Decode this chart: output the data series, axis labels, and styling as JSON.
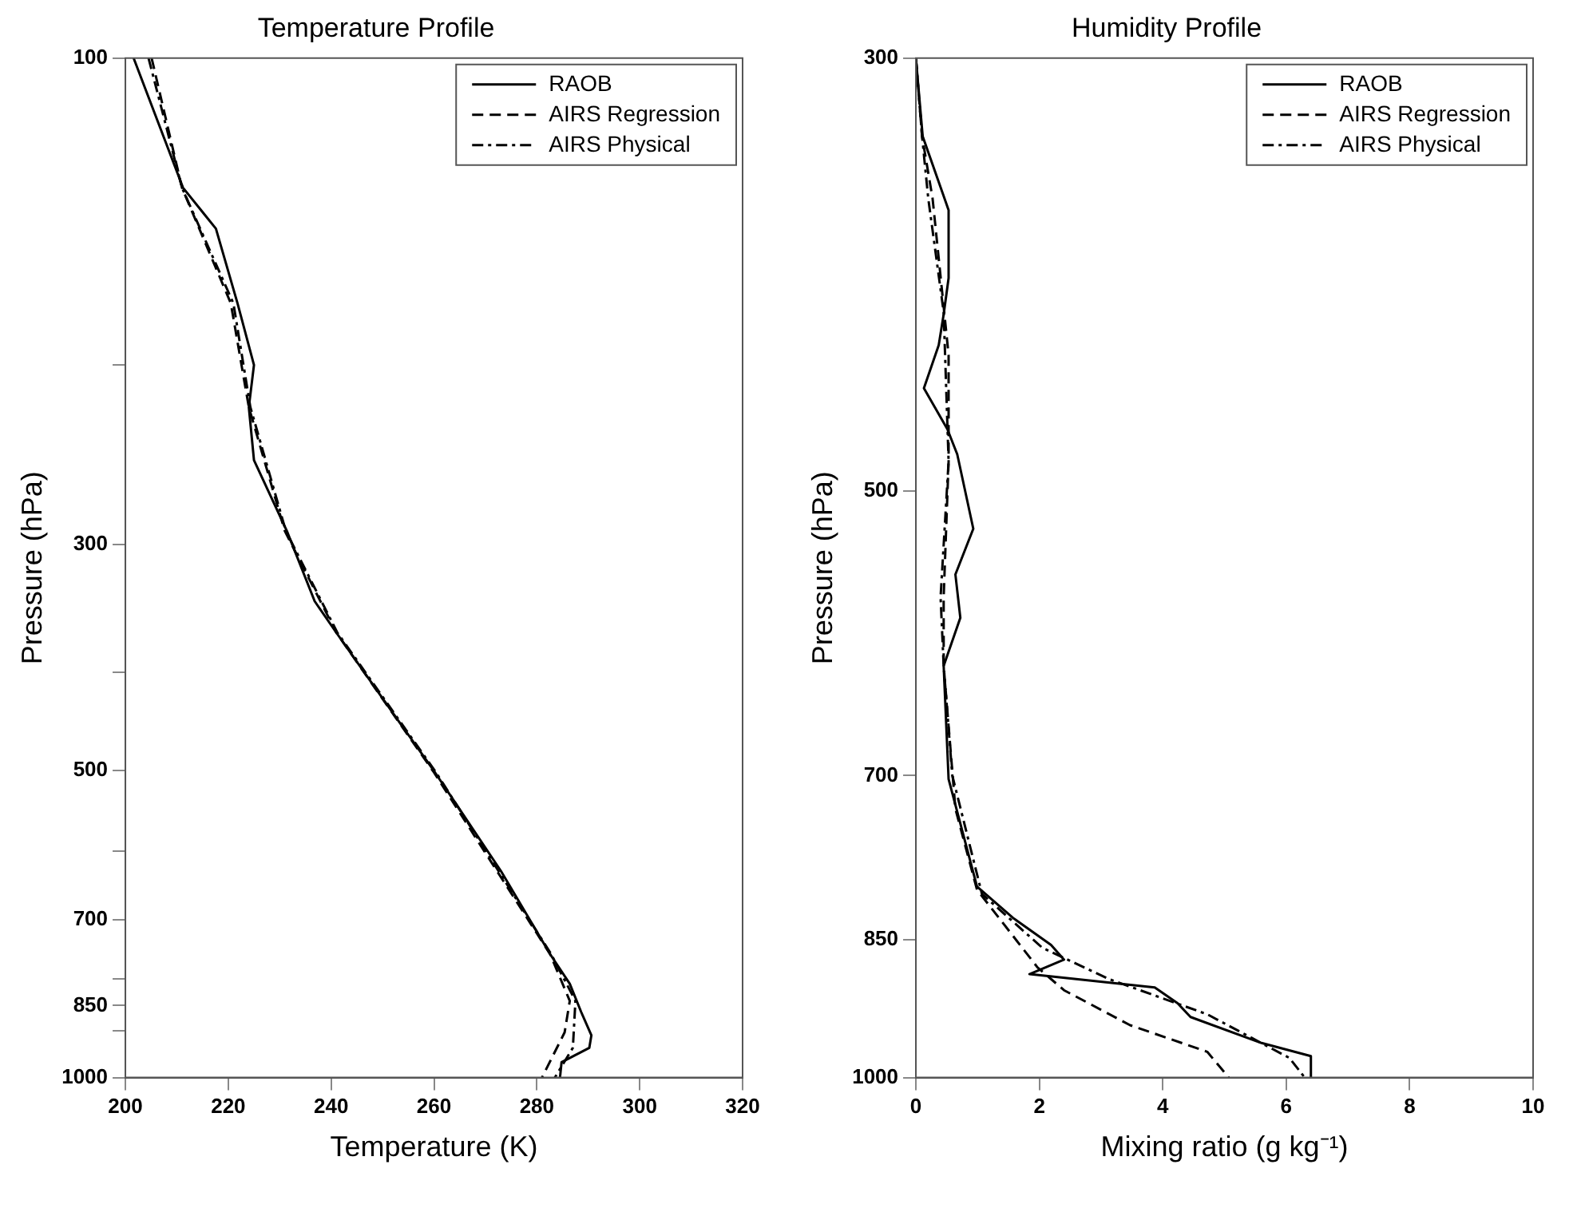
{
  "chart_data": [
    {
      "type": "line",
      "title": "Temperature Profile",
      "xlabel": "Temperature (K)",
      "ylabel": "Pressure (hPa)",
      "log": "y",
      "xlim": [
        200,
        320
      ],
      "xticks": [
        200,
        220,
        240,
        260,
        280,
        300,
        320
      ],
      "ylim": [
        1000,
        100
      ],
      "yticks": [
        100,
        {
          "value": 200,
          "label": null
        },
        300,
        {
          "value": 400,
          "label": null
        },
        500,
        {
          "value": 600,
          "label": null
        },
        700,
        {
          "value": 800,
          "label": null
        },
        850,
        {
          "value": 900,
          "label": null
        },
        1000
      ],
      "legend": "top right",
      "series": [
        {
          "name": "RAOB",
          "color": "#000000",
          "line_style": "solid",
          "x": [
            201.6,
            211.2,
            217.6,
            221.8,
            225.0,
            224.0,
            225.0,
            231.4,
            236.8,
            241.0,
            253.8,
            260.2,
            273.0,
            282.6,
            286.4,
            288.6,
            290.6,
            290.2,
            284.8,
            284.5
          ],
          "values": [
            100,
            134,
            147,
            174,
            200,
            220,
            248,
            291,
            341,
            366,
            452,
            502,
            627,
            757,
            809,
            862,
            909,
            935,
            966,
            1000
          ]
        },
        {
          "name": "AIRS Regression",
          "color": "#000000",
          "line_style": "dashed",
          "x": [
            205.1,
            211,
            220.5,
            224,
            231,
            241,
            260,
            282.6,
            286.4,
            285.4,
            281
          ],
          "values": [
            100,
            134,
            174,
            220,
            291,
            366,
            502,
            757,
            841,
            903,
            1000
          ]
        },
        {
          "name": "AIRS Physical",
          "color": "#000000",
          "line_style": "dashdot",
          "x": [
            204.5,
            211,
            221,
            224.3,
            231.2,
            241.2,
            260.4,
            282.8,
            287.5,
            287,
            283.5
          ],
          "values": [
            100,
            134,
            174,
            220,
            291,
            366,
            502,
            757,
            841,
            935,
            1000
          ]
        }
      ]
    },
    {
      "type": "line",
      "title": "Humidity Profile",
      "xlabel": "Mixing ratio (g kg⁻¹)",
      "ylabel": "Pressure (hPa)",
      "log": "y",
      "xlim": [
        0,
        10
      ],
      "xticks": [
        0,
        2,
        4,
        6,
        8,
        10
      ],
      "ylim": [
        1000,
        300
      ],
      "yticks": [
        300,
        500,
        700,
        850,
        1000
      ],
      "legend": "top right",
      "series": [
        {
          "name": "RAOB",
          "color": "#000000",
          "line_style": "solid",
          "x": [
            0,
            0.11,
            0.53,
            0.53,
            0.45,
            0.37,
            0.13,
            0.51,
            0.67,
            0.93,
            0.64,
            0.72,
            0.45,
            0.53,
            0.99,
            1.57,
            2.19,
            2.4,
            1.84,
            3.87,
            4.24,
            4.45,
            5.6,
            6.4,
            6.4
          ],
          "values": [
            300,
            329,
            359,
            389,
            406,
            421,
            443,
            465,
            479,
            523,
            552,
            581,
            615,
            703,
            798,
            828,
            855,
            870,
            885,
            899,
            916,
            931,
            960,
            975,
            1000
          ]
        },
        {
          "name": "AIRS Regression",
          "color": "#000000",
          "line_style": "dashed",
          "x": [
            0,
            0.1,
            0.27,
            0.53,
            0.53,
            0.45,
            0.45,
            0.64,
            0.99,
            1.97,
            2.4,
            3.47,
            4.72,
            5.07
          ],
          "values": [
            300,
            329,
            354,
            426,
            483,
            567,
            615,
            728,
            801,
            878,
            902,
            940,
            970,
            1000
          ]
        },
        {
          "name": "AIRS Physical",
          "color": "#000000",
          "line_style": "dashdot",
          "x": [
            0,
            0.1,
            0.2,
            0.45,
            0.53,
            0.4,
            0.45,
            0.59,
            1.07,
            2.05,
            3.12,
            4.72,
            6.05,
            6.3
          ],
          "values": [
            300,
            329,
            354,
            405,
            483,
            567,
            615,
            700,
            805,
            858,
            890,
            928,
            977,
            1000
          ]
        }
      ]
    }
  ]
}
